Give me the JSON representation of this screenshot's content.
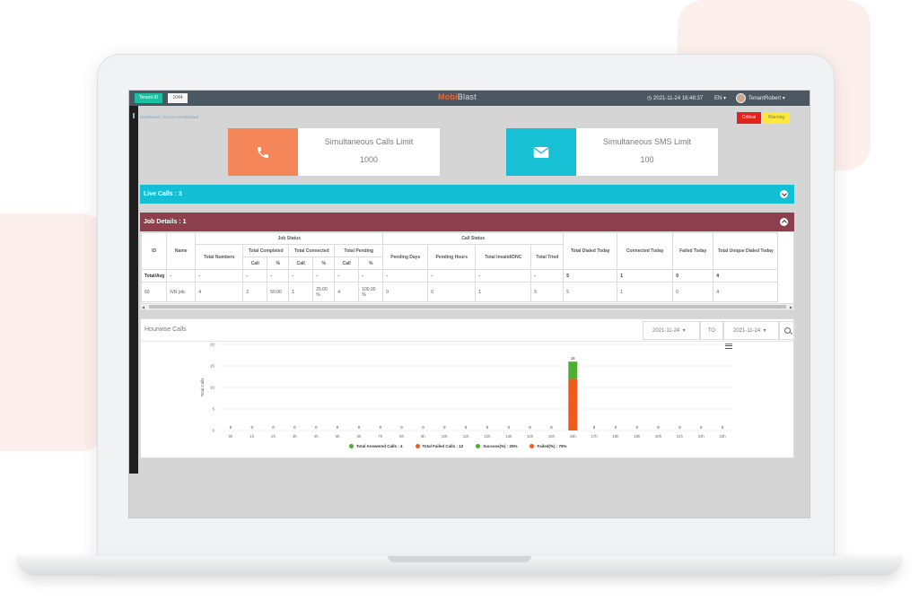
{
  "header": {
    "tenant_label": "Tenant ID",
    "tenant_value": "1044",
    "logo_main": "Mobi",
    "logo_accent": "Blast",
    "datetime": "2021-11-24 16:48:37",
    "language": "EN",
    "user_name": "TenantRobert"
  },
  "breadcrumb": "Dashboard / Account Dashboard",
  "alerts": {
    "critical": "Critical",
    "warning": "Warning"
  },
  "limits": [
    {
      "title": "Simultaneous Calls Limit",
      "value": "1000",
      "color": "#f4865a",
      "icon": "phone-icon"
    },
    {
      "title": "Simultaneous SMS Limit",
      "value": "100",
      "color": "#17c0d4",
      "icon": "envelope-icon"
    }
  ],
  "live_calls": "Live Calls : 3",
  "job_details": "Job Details : 1",
  "job_table": {
    "groups": {
      "job_status": "Job Status",
      "call_status": "Call Status"
    },
    "h": {
      "id": "ID",
      "name": "Name",
      "total_numbers": "Total Numbers",
      "total_completed": "Total Completed",
      "total_connected": "Total Connected",
      "total_pending": "Total Pending",
      "call": "Call",
      "pct": "%",
      "pending_days": "Pending Days",
      "pending_hours": "Pending Hours",
      "total_invalid": "Total Invalid/DNC",
      "total_tried": "Total Tried",
      "dialed_today": "Total Dialed Today",
      "connected_today": "Connected Today",
      "failed_today": "Failed Today",
      "unique_dialed_today": "Total Unique Dialed Today"
    },
    "total_row": [
      "Total/Avg",
      "-",
      "-",
      "-",
      "-",
      "-",
      "-",
      "-",
      "-",
      "-",
      "-",
      "-",
      "-",
      "5",
      "1",
      "0",
      "4"
    ],
    "row": [
      "60",
      "IVR job",
      "4",
      "2",
      "50.00",
      "1",
      "25.00 %",
      "4",
      "100.00 %",
      "0",
      "0",
      "1",
      "5",
      "5",
      "1",
      "0",
      "4"
    ]
  },
  "hourwise": {
    "title": "Hourwise Calls",
    "from_date": "2021-11-24",
    "to_label": "TO",
    "to_date": "2021-11-24"
  },
  "chart_data": {
    "type": "bar",
    "stacked": true,
    "categories": [
      "0h",
      "1h",
      "2h",
      "3h",
      "4h",
      "5h",
      "6h",
      "7h",
      "8h",
      "9h",
      "10h",
      "11h",
      "12h",
      "13h",
      "14h",
      "15h",
      "16h",
      "17h",
      "18h",
      "19h",
      "20h",
      "21h",
      "22h",
      "23h"
    ],
    "series": [
      {
        "name": "Total Answered Calls : 4",
        "color": "#4caf32",
        "values": [
          0,
          0,
          0,
          0,
          0,
          0,
          0,
          0,
          0,
          0,
          0,
          0,
          0,
          0,
          0,
          0,
          4,
          0,
          0,
          0,
          0,
          0,
          0,
          0
        ]
      },
      {
        "name": "Total Failed Calls : 12",
        "color": "#f05a1c",
        "values": [
          0,
          0,
          0,
          0,
          0,
          0,
          0,
          0,
          0,
          0,
          0,
          0,
          0,
          0,
          0,
          0,
          12,
          0,
          0,
          0,
          0,
          0,
          0,
          0
        ]
      }
    ],
    "totals": [
      "0",
      "0",
      "0",
      "0",
      "0",
      "0",
      "0",
      "0",
      "0",
      "0",
      "0",
      "0",
      "0",
      "0",
      "0",
      "0",
      "16",
      "0",
      "0",
      "0",
      "0",
      "0",
      "0",
      "0"
    ],
    "extra_legend": [
      {
        "name": "Success(%) : 25%",
        "color": "#4caf32"
      },
      {
        "name": "Failed(%) : 75%",
        "color": "#f05a1c"
      }
    ],
    "ylabel": "Total Calls",
    "ylim": [
      0,
      20
    ],
    "yticks": [
      "0",
      "5",
      "10",
      "15",
      "20"
    ],
    "grid": true,
    "legend_position": "bottom"
  }
}
